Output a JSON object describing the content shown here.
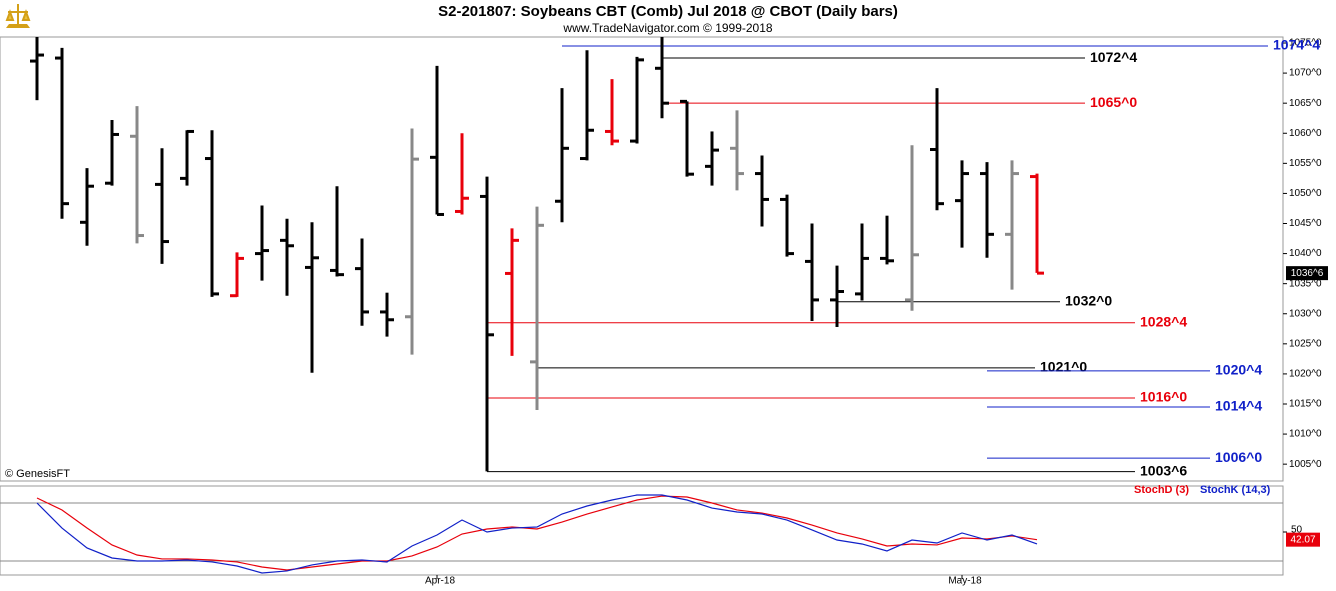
{
  "chart_data": {
    "type": "ohlc",
    "title": "S2-201807:  Soybeans CBT (Comb) Jul 2018 @ CBOT  (Daily bars)",
    "subtitle": "www.TradeNavigator.com © 1999-2018",
    "source": "© GenesisFT",
    "categories": [
      null,
      null,
      null,
      null,
      null,
      null,
      null,
      null,
      null,
      null,
      null,
      null,
      null,
      null,
      null,
      null,
      "Apr-18",
      null,
      null,
      null,
      null,
      null,
      null,
      null,
      null,
      null,
      null,
      null,
      null,
      null,
      null,
      null,
      null,
      null,
      null,
      null,
      null,
      "May-18",
      null,
      null,
      null
    ],
    "open": [
      1072.0,
      1072.5,
      1045.2,
      1051.7,
      1059.5,
      1051.5,
      1052.5,
      1055.8,
      1033.0,
      1040.0,
      1042.2,
      1037.7,
      1037.2,
      1037.5,
      1030.3,
      1029.5,
      1056.0,
      1047.0,
      1049.5,
      1036.7,
      1022.0,
      1048.7,
      1055.8,
      1060.3,
      1058.7,
      1070.8,
      1065.3,
      1054.5,
      1057.5,
      1053.3,
      1049.0,
      1038.7,
      1032.3,
      1033.3,
      1039.2,
      1032.3,
      1057.3,
      1048.8,
      1053.3,
      1043.2,
      1052.8
    ],
    "high": [
      1076.0,
      1074.2,
      1054.2,
      1062.2,
      1064.5,
      1057.5,
      1060.5,
      1060.5,
      1040.2,
      1048.0,
      1045.8,
      1045.2,
      1051.2,
      1042.5,
      1033.5,
      1060.8,
      1071.2,
      1060.0,
      1052.8,
      1044.2,
      1047.8,
      1067.5,
      1073.8,
      1069.0,
      1072.7,
      1076.0,
      1065.3,
      1060.3,
      1063.8,
      1056.3,
      1049.8,
      1045.0,
      1038.0,
      1045.0,
      1046.3,
      1058.0,
      1067.5,
      1055.5,
      1055.2,
      1055.5,
      1053.3
    ],
    "low": [
      1065.5,
      1045.8,
      1041.3,
      1051.3,
      1041.7,
      1038.3,
      1051.3,
      1032.8,
      1032.8,
      1035.5,
      1033.0,
      1020.2,
      1036.2,
      1028.0,
      1026.2,
      1023.2,
      1046.5,
      1046.5,
      1003.8,
      1023.0,
      1014.0,
      1045.2,
      1055.5,
      1058.0,
      1058.3,
      1062.5,
      1052.8,
      1051.3,
      1050.5,
      1044.5,
      1039.5,
      1028.8,
      1027.8,
      1032.2,
      1038.2,
      1030.5,
      1047.2,
      1041.0,
      1039.3,
      1034.0,
      1036.8
    ],
    "close": [
      1073.0,
      1048.3,
      1051.2,
      1059.8,
      1043.0,
      1042.0,
      1060.3,
      1033.3,
      1039.2,
      1040.5,
      1041.3,
      1039.3,
      1036.5,
      1030.3,
      1029.0,
      1055.7,
      1046.5,
      1049.2,
      1026.5,
      1042.2,
      1044.7,
      1057.5,
      1060.5,
      1058.7,
      1072.2,
      1065.0,
      1053.2,
      1057.2,
      1053.3,
      1049.0,
      1040.0,
      1032.3,
      1033.7,
      1039.2,
      1038.8,
      1039.8,
      1048.3,
      1053.3,
      1043.2,
      1053.3,
      1036.75
    ],
    "bar_colors": [
      "#000000",
      "#000000",
      "#000000",
      "#000000",
      "#888888",
      "#000000",
      "#000000",
      "#000000",
      "#e8000b",
      "#000000",
      "#000000",
      "#000000",
      "#000000",
      "#000000",
      "#000000",
      "#888888",
      "#000000",
      "#e8000b",
      "#000000",
      "#e8000b",
      "#888888",
      "#000000",
      "#000000",
      "#e8000b",
      "#000000",
      "#000000",
      "#000000",
      "#000000",
      "#888888",
      "#000000",
      "#000000",
      "#000000",
      "#000000",
      "#000000",
      "#000000",
      "#888888",
      "#000000",
      "#000000",
      "#000000",
      "#888888",
      "#e8000b"
    ],
    "last_price_label": "1036^6",
    "ylim": [
      1002.2,
      1076
    ],
    "yticks": [
      {
        "value": 1005,
        "label": "1005^0"
      },
      {
        "value": 1010,
        "label": "1010^0"
      },
      {
        "value": 1015,
        "label": "1015^0"
      },
      {
        "value": 1020,
        "label": "1020^0"
      },
      {
        "value": 1025,
        "label": "1025^0"
      },
      {
        "value": 1030,
        "label": "1030^0"
      },
      {
        "value": 1035,
        "label": "1035^0"
      },
      {
        "value": 1040,
        "label": "1040^0"
      },
      {
        "value": 1045,
        "label": "1045^0"
      },
      {
        "value": 1050,
        "label": "1050^0"
      },
      {
        "value": 1055,
        "label": "1055^0"
      },
      {
        "value": 1060,
        "label": "1060^0"
      },
      {
        "value": 1065,
        "label": "1065^0"
      },
      {
        "value": 1070,
        "label": "1070^0"
      },
      {
        "value": 1075,
        "label": "1075^0"
      }
    ],
    "levels": [
      {
        "value": 1074.5,
        "label": "1074^4",
        "color": "#1020c8"
      },
      {
        "value": 1072.5,
        "label": "1072^4",
        "color": "#000000"
      },
      {
        "value": 1065,
        "label": "1065^0",
        "color": "#e8000b"
      },
      {
        "value": 1032,
        "label": "1032^0",
        "color": "#000000"
      },
      {
        "value": 1028.5,
        "label": "1028^4",
        "color": "#e8000b"
      },
      {
        "value": 1021,
        "label": "1021^0",
        "color": "#000000"
      },
      {
        "value": 1020.5,
        "label": "1020^4",
        "color": "#1020c8"
      },
      {
        "value": 1016,
        "label": "1016^0",
        "color": "#e8000b"
      },
      {
        "value": 1014.5,
        "label": "1014^4",
        "color": "#1020c8"
      },
      {
        "value": 1006,
        "label": "1006^0",
        "color": "#1020c8"
      },
      {
        "value": 1003.75,
        "label": "1003^6",
        "color": "#000000"
      }
    ],
    "indicator": {
      "type": "line",
      "ylim": [
        5.5,
        97.6
      ],
      "yticks": [
        50
      ],
      "series": [
        {
          "name": "StochD (3)",
          "color": "#e8000b",
          "values": [
            85.2,
            72.8,
            54.1,
            36.6,
            26.2,
            22.1,
            22.1,
            21.0,
            19.0,
            13.8,
            10.7,
            13.8,
            16.9,
            20.0,
            20.0,
            25.2,
            34.5,
            47.9,
            53.1,
            55.2,
            53.1,
            60.3,
            68.6,
            75.9,
            83.1,
            87.2,
            86.2,
            80.0,
            72.8,
            69.6,
            64.5,
            57.2,
            49.0,
            42.8,
            35.5,
            37.6,
            36.6,
            43.8,
            42.8,
            45.9,
            42.07
          ]
        },
        {
          "name": "StochK (14,3)",
          "color": "#1020c8",
          "values": [
            80.0,
            54.1,
            33.5,
            23.1,
            20.0,
            20.0,
            21.0,
            19.0,
            14.8,
            7.6,
            9.7,
            15.9,
            20.0,
            21.0,
            19.0,
            35.5,
            46.9,
            62.4,
            50.0,
            54.1,
            55.2,
            68.6,
            76.9,
            83.1,
            88.3,
            88.3,
            83.1,
            74.8,
            70.7,
            68.6,
            62.4,
            52.1,
            41.7,
            37.6,
            30.4,
            41.7,
            38.6,
            49.0,
            41.7,
            46.9,
            37.6
          ]
        }
      ]
    }
  }
}
